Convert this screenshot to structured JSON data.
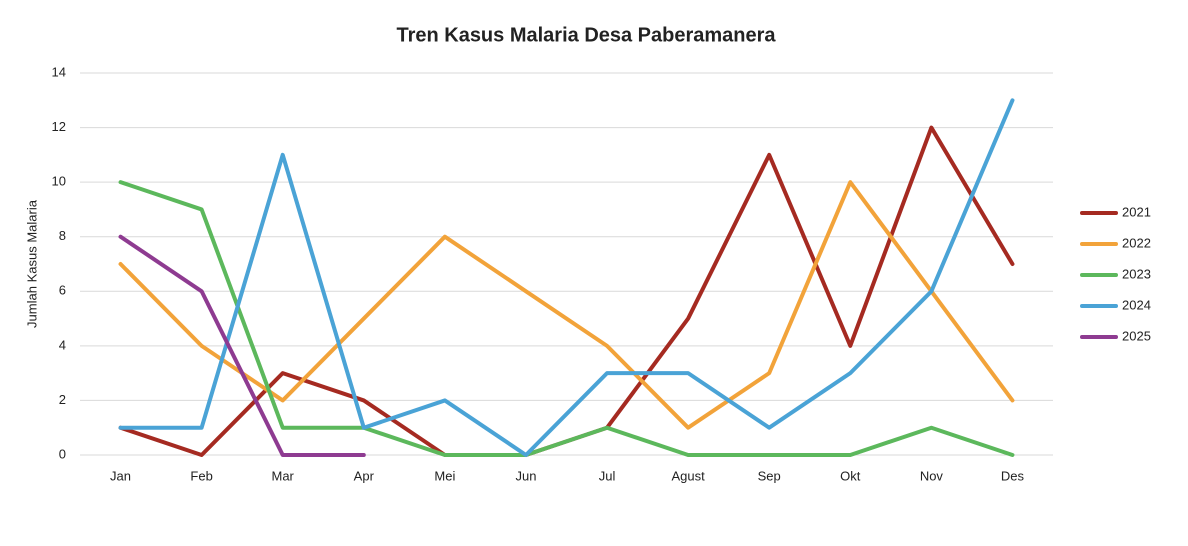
{
  "chart_data": {
    "type": "line",
    "title": "Tren Kasus Malaria Desa Paberamanera",
    "y_label": "Jumlah Kasus Malaria",
    "categories": [
      "Jan",
      "Feb",
      "Mar",
      "Apr",
      "Mei",
      "Jun",
      "Jul",
      "Agust",
      "Sep",
      "Okt",
      "Nov",
      "Des"
    ],
    "series": [
      {
        "name": "2021",
        "color": "#a52a21",
        "values": [
          1,
          0,
          3,
          2,
          0,
          0,
          1,
          5,
          11,
          4,
          12,
          7
        ]
      },
      {
        "name": "2022",
        "color": "#f2a33a",
        "values": [
          7,
          4,
          2,
          5,
          8,
          6,
          4,
          1,
          3,
          10,
          6,
          2
        ]
      },
      {
        "name": "2023",
        "color": "#5cb85c",
        "values": [
          10,
          9,
          1,
          1,
          0,
          0,
          1,
          0,
          0,
          0,
          1,
          0
        ]
      },
      {
        "name": "2024",
        "color": "#4aa3d6",
        "values": [
          1,
          1,
          11,
          1,
          2,
          0,
          3,
          3,
          1,
          3,
          6,
          13
        ]
      },
      {
        "name": "2025",
        "color": "#8e3b91",
        "values": [
          8,
          6,
          0,
          0,
          null,
          null,
          null,
          null,
          null,
          null,
          null,
          null
        ]
      }
    ],
    "ylim": [
      0,
      14
    ],
    "yticks": [
      0,
      2,
      4,
      6,
      8,
      10,
      12,
      14
    ],
    "grid": true,
    "legend": "right"
  }
}
